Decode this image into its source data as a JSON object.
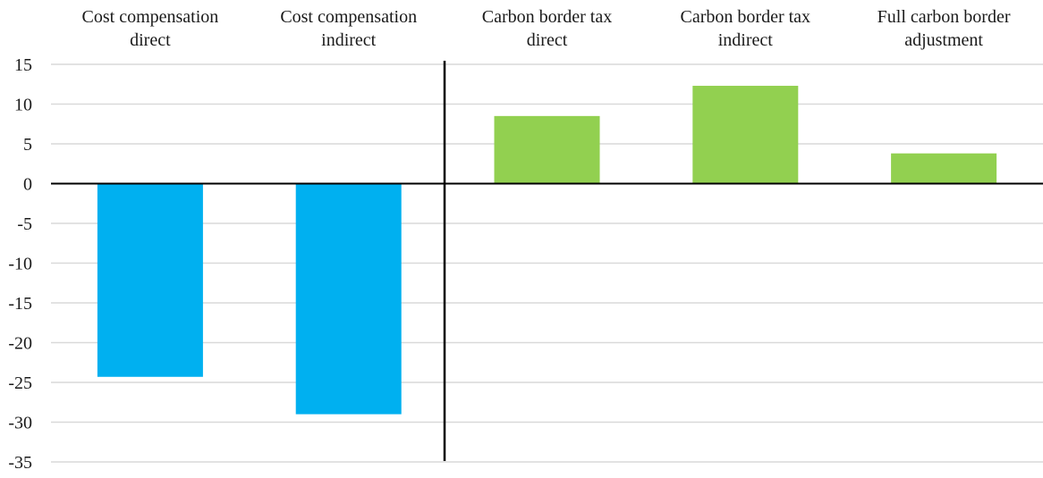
{
  "chart_data": {
    "type": "bar",
    "categories": [
      [
        "Cost compensation",
        "direct"
      ],
      [
        "Cost compensation",
        "indirect"
      ],
      [
        "Carbon border tax",
        "direct"
      ],
      [
        "Carbon border tax",
        "indirect"
      ],
      [
        "Full carbon border",
        "adjustment"
      ]
    ],
    "values": [
      -24.3,
      -29.0,
      8.5,
      12.3,
      3.8
    ],
    "bar_colors": [
      "#00B0F0",
      "#00B0F0",
      "#92D050",
      "#92D050",
      "#92D050"
    ],
    "ylim": [
      -35,
      15
    ],
    "yticks": [
      15,
      10,
      5,
      0,
      -5,
      -10,
      -15,
      -20,
      -25,
      -30,
      -35
    ],
    "grid": true,
    "title": "",
    "xlabel": "",
    "ylabel": "",
    "colors": {
      "grid": "#d9d9d9",
      "axis": "#000000",
      "text": "#1a1a1a",
      "separator": "#000000"
    }
  }
}
